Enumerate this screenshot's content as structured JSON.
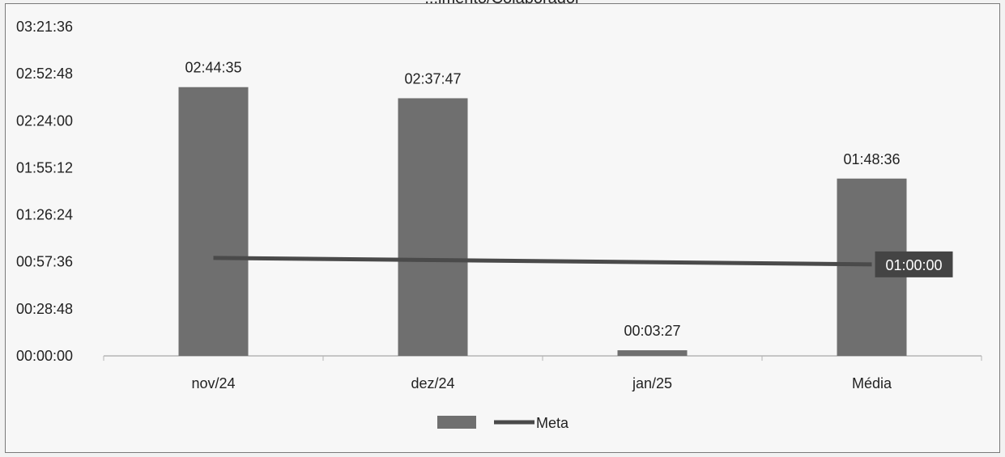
{
  "chart_data": {
    "type": "bar",
    "title": "",
    "xlabel": "",
    "ylabel": "",
    "categories": [
      "nov/24",
      "dez/24",
      "jan/25",
      "Média"
    ],
    "series": [
      {
        "name": "",
        "kind": "bar",
        "values": [
          "02:44:35",
          "02:37:47",
          "00:03:27",
          "01:48:36"
        ],
        "value_labels": [
          "02:44:35",
          "02:37:47",
          "00:03:27",
          "01:48:36"
        ],
        "color": "#6f6f6f"
      },
      {
        "name": "Meta",
        "kind": "line",
        "values": [
          "01:00:00",
          "01:00:00",
          "01:00:00",
          "01:00:00"
        ],
        "end_label": "01:00:00",
        "color": "#4a4a4a"
      }
    ],
    "y_ticks": [
      "00:00:00",
      "00:28:48",
      "00:57:36",
      "01:26:24",
      "01:55:12",
      "02:24:00",
      "02:52:48",
      "03:21:36"
    ],
    "ylim": [
      "00:00:00",
      "03:21:36"
    ],
    "grid": false,
    "legend_placement": "bottom"
  },
  "partial_title": "...imento/Colaborador"
}
